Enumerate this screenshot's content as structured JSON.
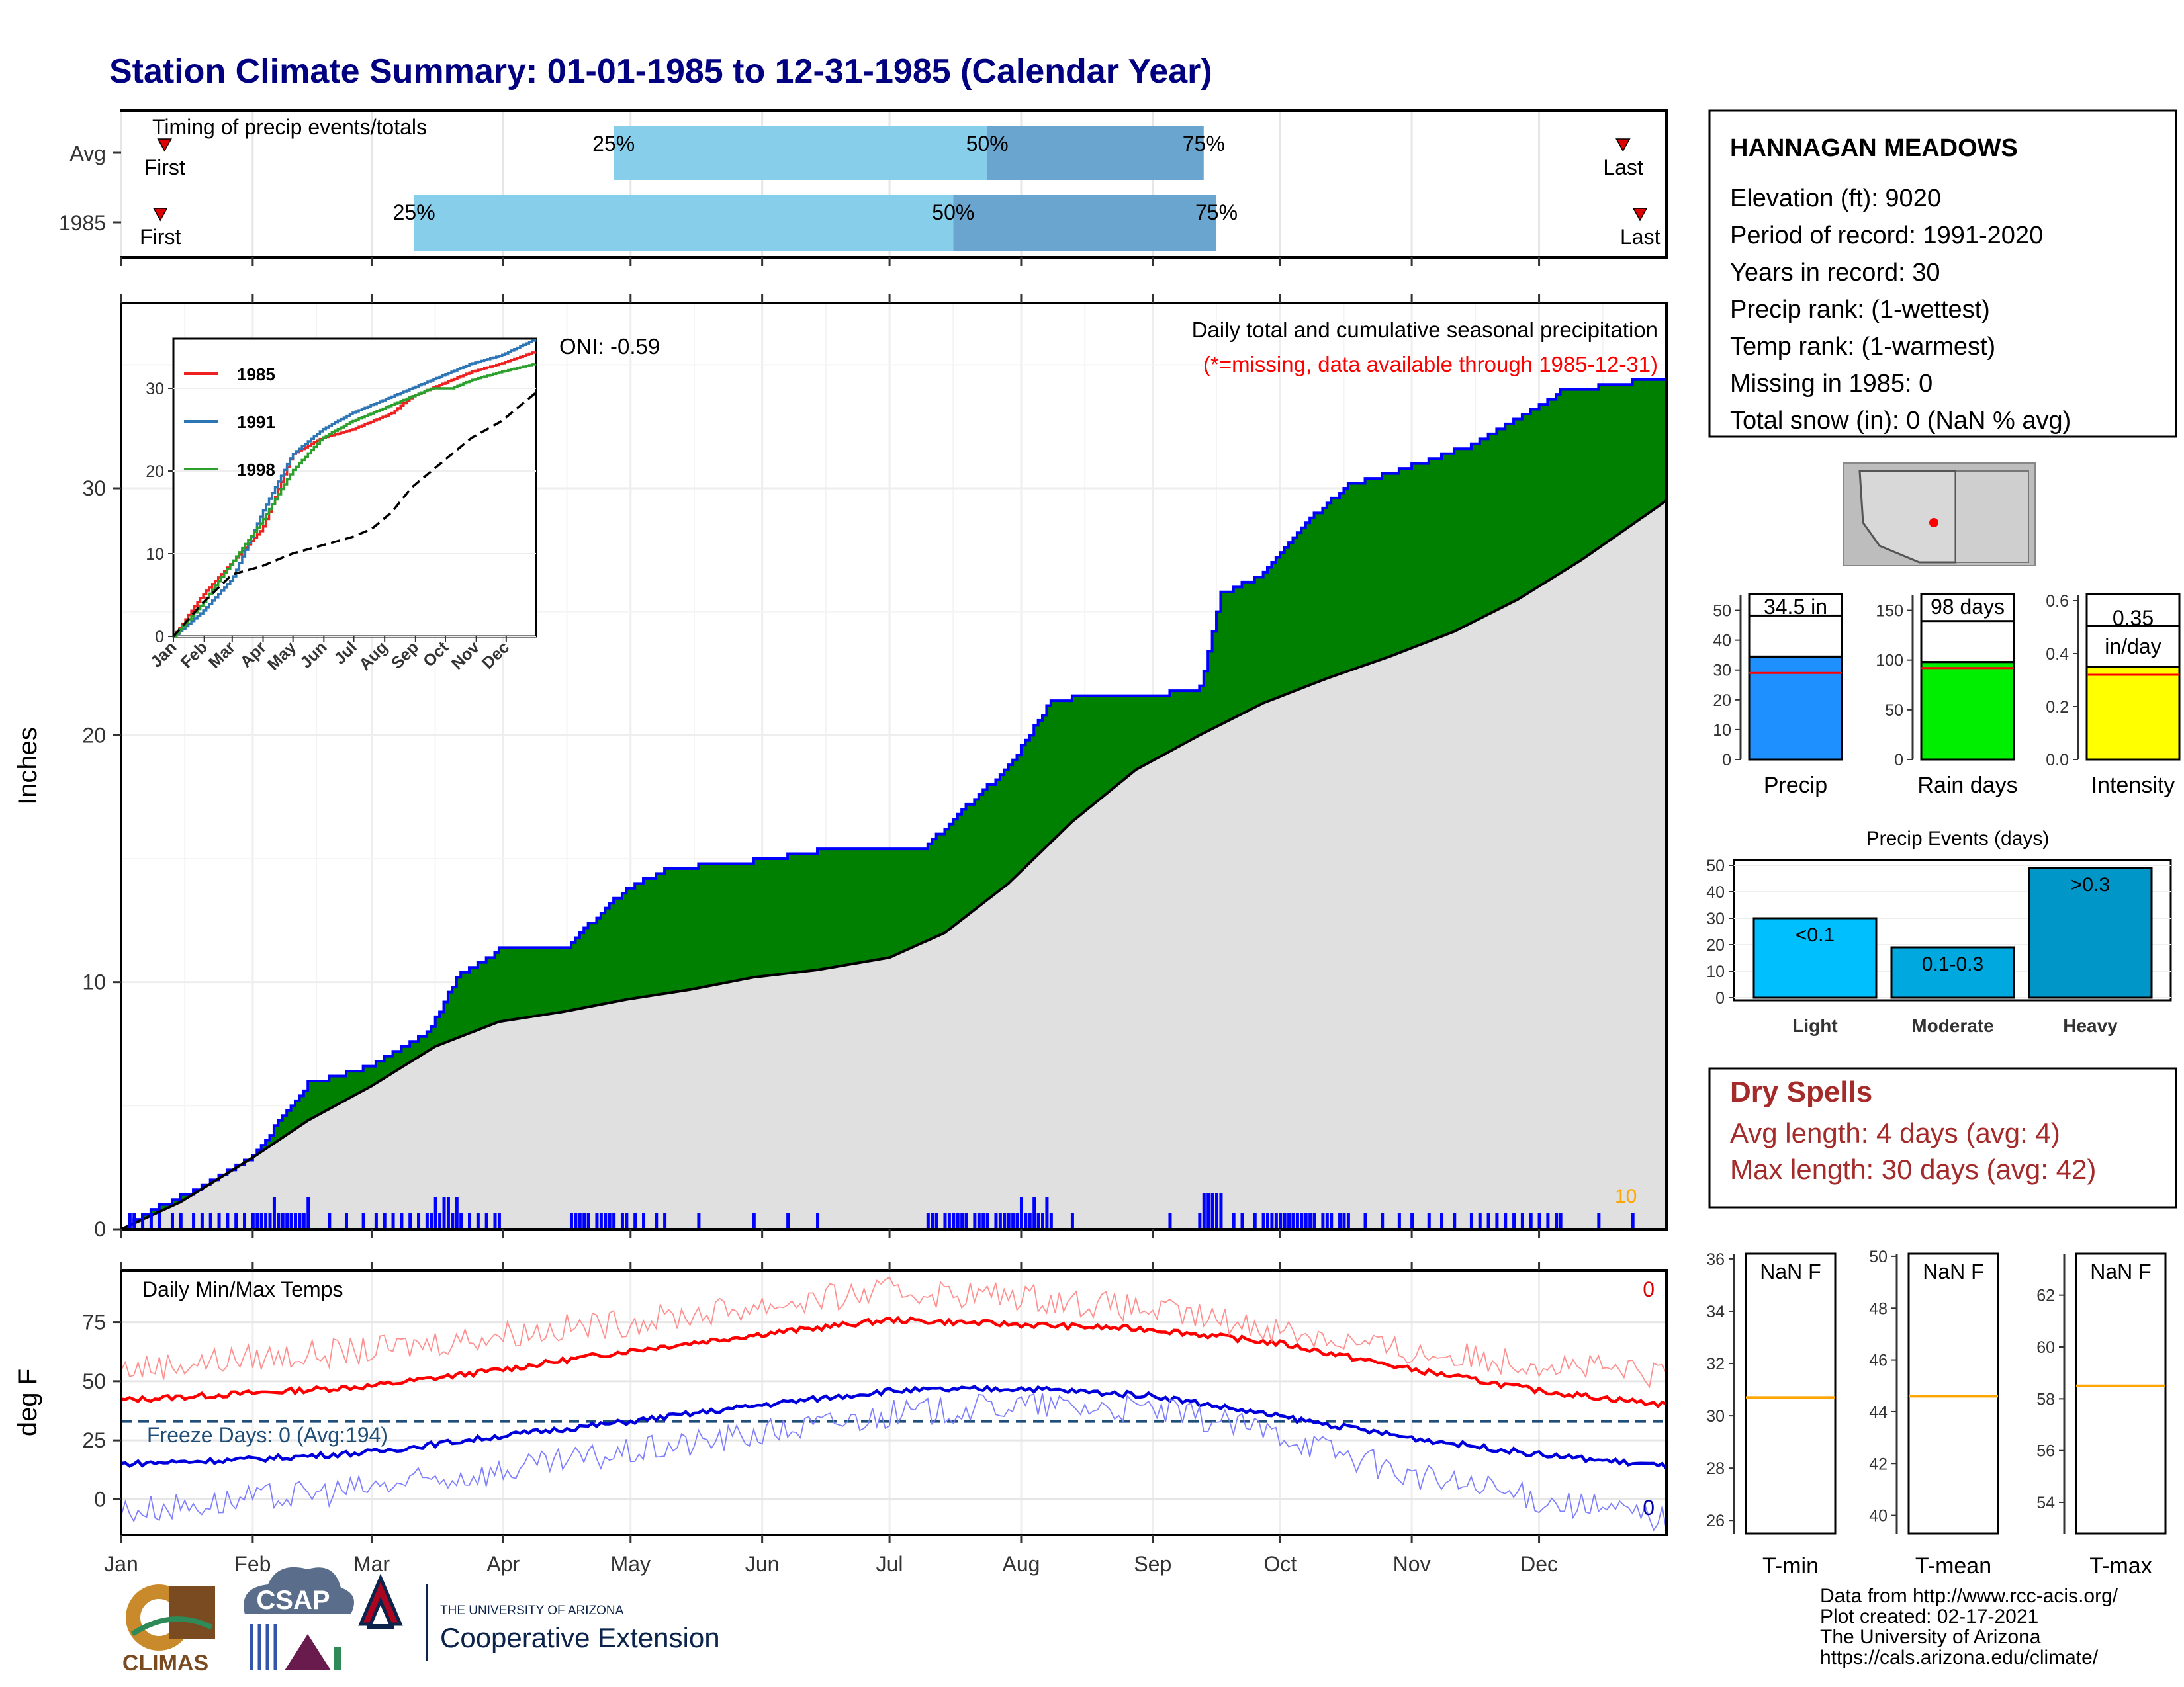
{
  "title": "Station Climate Summary: 01-01-1985 to 12-31-1985 (Calendar Year)",
  "months": [
    "Jan",
    "Feb",
    "Mar",
    "Apr",
    "May",
    "Jun",
    "Jul",
    "Aug",
    "Sep",
    "Oct",
    "Nov",
    "Dec"
  ],
  "timing": {
    "title": "Timing of precip events/totals",
    "rows": [
      {
        "label": "Avg",
        "first": "First",
        "last": "Last",
        "pct25": "25%",
        "pct50": "50%",
        "pct75": "75%",
        "day25": 117,
        "day50": 205,
        "day75": 256,
        "first_day": 5,
        "last_day": 361
      },
      {
        "label": "1985",
        "first": "First",
        "last": "Last",
        "pct25": "25%",
        "pct50": "50%",
        "pct75": "75%",
        "day25": 70,
        "day50": 197,
        "day75": 259,
        "first_day": 4,
        "last_day": 365
      }
    ]
  },
  "station": {
    "name": "HANNAGAN MEADOWS",
    "lines": [
      "Elevation (ft): 9020",
      "Period of record: 1991-2020",
      "Years in record: 30",
      "Precip rank:  (1-wettest)",
      "Temp rank:  (1-warmest)",
      "Missing in 1985: 0",
      "Total snow (in): 0 (NaN % avg)"
    ]
  },
  "main": {
    "ylabel": "Inches",
    "heading": "Daily total and cumulative seasonal precipitation",
    "note": "(*=missing, data available through 1985-12-31)",
    "oni": "ONI: -0.59",
    "corner_value": "10",
    "yticks": [
      "0",
      "10",
      "20",
      "30"
    ]
  },
  "chart_data": [
    {
      "type": "area",
      "name": "cumulative-precip-main",
      "ylabel": "Inches",
      "ylim": [
        0,
        37.5
      ],
      "x_unit": "day of year",
      "series": [
        {
          "name": "1985 cumulative",
          "x": [
            1,
            10,
            20,
            32,
            45,
            60,
            73,
            80,
            90,
            105,
            120,
            130,
            150,
            165,
            175,
            190,
            200,
            210,
            220,
            225,
            240,
            255,
            260,
            270,
            280,
            290,
            300,
            320,
            340,
            365
          ],
          "values": [
            0,
            0.9,
            1.7,
            3.0,
            5.9,
            6.6,
            7.9,
            10.2,
            11.3,
            11.3,
            13.8,
            14.6,
            14.9,
            15.3,
            15.3,
            15.4,
            17.1,
            18.7,
            21.4,
            21.5,
            21.5,
            21.9,
            25.7,
            26.5,
            28.6,
            30.1,
            30.6,
            31.8,
            33.9,
            34.5
          ]
        },
        {
          "name": "Average cumulative",
          "x": [
            1,
            15,
            32,
            45,
            60,
            75,
            90,
            105,
            120,
            135,
            150,
            165,
            182,
            195,
            210,
            225,
            240,
            255,
            270,
            285,
            300,
            315,
            330,
            345,
            365
          ],
          "values": [
            0,
            1.1,
            2.9,
            4.4,
            5.8,
            7.4,
            8.4,
            8.8,
            9.3,
            9.7,
            10.2,
            10.5,
            11.0,
            12.0,
            14.0,
            16.5,
            18.6,
            20.0,
            21.3,
            22.3,
            23.2,
            24.2,
            25.5,
            27.1,
            29.5
          ]
        }
      ]
    },
    {
      "type": "line",
      "name": "cumulative-precip-inset",
      "legend": [
        "1985",
        "1991",
        "1998"
      ],
      "ylim": [
        0,
        36
      ],
      "yticks": [
        "0",
        "10",
        "20",
        "30"
      ],
      "series": [
        {
          "name": "1985",
          "color": "#ee2020",
          "x": [
            1,
            30,
            60,
            90,
            120,
            150,
            180,
            200,
            220,
            240,
            260,
            280,
            300,
            330,
            365
          ],
          "values": [
            0,
            5,
            9,
            13,
            22,
            24,
            25,
            26,
            27,
            29,
            30,
            31,
            32,
            33,
            34.5
          ]
        },
        {
          "name": "1991",
          "color": "#2e75b6",
          "x": [
            1,
            30,
            60,
            90,
            120,
            150,
            180,
            200,
            220,
            240,
            260,
            280,
            300,
            330,
            365
          ],
          "values": [
            0,
            3,
            7,
            15,
            22,
            25,
            27,
            28,
            29,
            30,
            31,
            32,
            33,
            34,
            36
          ]
        },
        {
          "name": "1998",
          "color": "#2ca02c",
          "x": [
            1,
            30,
            60,
            90,
            120,
            150,
            180,
            200,
            220,
            240,
            260,
            280,
            300,
            330,
            365
          ],
          "values": [
            0,
            4,
            9,
            14,
            20,
            24,
            26,
            27,
            28,
            29,
            30,
            30,
            31,
            32,
            33
          ]
        },
        {
          "name": "avg",
          "color": "#000000",
          "x": [
            1,
            30,
            60,
            90,
            120,
            150,
            180,
            200,
            220,
            240,
            260,
            280,
            300,
            330,
            365
          ],
          "values": [
            0,
            4,
            7.5,
            8.5,
            10,
            11,
            12,
            13,
            15,
            18,
            20,
            22,
            24,
            26,
            29.5
          ]
        }
      ]
    },
    {
      "type": "bar",
      "name": "rank-bars",
      "panels": [
        {
          "label": "Precip",
          "value_label": "34.5 in",
          "value": 34.5,
          "avg": 29,
          "ylim": [
            0,
            55
          ],
          "yticks": [
            "0",
            "10",
            "20",
            "30",
            "40",
            "50"
          ],
          "color": "#1e90ff"
        },
        {
          "label": "Rain days",
          "value_label": "98 days",
          "value": 98,
          "avg": 92,
          "ylim": [
            0,
            165
          ],
          "yticks": [
            "0",
            "50",
            "100",
            "150"
          ],
          "color": "#00ee00"
        },
        {
          "label": "Intensity",
          "value_label": "0.35 in/day",
          "value": 0.35,
          "avg": 0.32,
          "ylim": [
            0,
            0.62
          ],
          "yticks": [
            "0.0",
            "0.2",
            "0.4",
            "0.6"
          ],
          "color": "#ffff00"
        }
      ]
    },
    {
      "type": "bar",
      "name": "precip-events",
      "title": "Precip Events (days)",
      "categories": [
        "Light",
        "Moderate",
        "Heavy"
      ],
      "bar_labels": [
        "<0.1",
        "0.1-0.3",
        ">0.3"
      ],
      "values": [
        30,
        19,
        49
      ],
      "ylim": [
        0,
        52
      ],
      "yticks": [
        "0",
        "10",
        "20",
        "30",
        "40",
        "50"
      ]
    },
    {
      "type": "line",
      "name": "daily-temps",
      "title": "Daily Min/Max Temps",
      "ylabel": "deg F",
      "ylim": [
        -15,
        97
      ],
      "yticks": [
        "0",
        "25",
        "50",
        "75"
      ],
      "freeze_line": 33,
      "freeze_label": "Freeze Days: 0 (Avg:194)",
      "corner_top": "0",
      "corner_bottom": "0",
      "series": [
        {
          "name": "avg max",
          "color": "#ff0000",
          "x": [
            1,
            32,
            60,
            91,
            121,
            152,
            182,
            213,
            244,
            274,
            305,
            335,
            365
          ],
          "values": [
            42,
            45,
            48,
            55,
            63,
            70,
            76,
            74,
            72,
            66,
            55,
            46,
            40
          ]
        },
        {
          "name": "avg min",
          "color": "#0000dd",
          "x": [
            1,
            32,
            60,
            91,
            121,
            152,
            182,
            213,
            244,
            274,
            305,
            335,
            365
          ],
          "values": [
            15,
            17,
            20,
            27,
            33,
            40,
            46,
            47,
            44,
            35,
            26,
            19,
            14
          ]
        },
        {
          "name": "1985 max",
          "color": "#ff9090",
          "x": [
            1,
            32,
            60,
            91,
            121,
            152,
            182,
            213,
            244,
            274,
            305,
            335,
            365
          ],
          "values": [
            55,
            60,
            63,
            70,
            75,
            82,
            88,
            86,
            80,
            72,
            62,
            58,
            52
          ]
        },
        {
          "name": "1985 min",
          "color": "#8080ff",
          "x": [
            1,
            32,
            60,
            91,
            121,
            152,
            182,
            213,
            244,
            274,
            305,
            335,
            365
          ],
          "values": [
            -5,
            0,
            5,
            12,
            20,
            28,
            36,
            40,
            38,
            28,
            10,
            0,
            -8
          ]
        }
      ]
    },
    {
      "type": "bar",
      "name": "temp-panels",
      "panels": [
        {
          "label": "T-min",
          "value_label": "NaN F",
          "avg": 30.7,
          "ylim": [
            25.5,
            36.2
          ],
          "yticks": [
            "26",
            "28",
            "30",
            "32",
            "34",
            "36"
          ]
        },
        {
          "label": "T-mean",
          "value_label": "NaN F",
          "avg": 44.6,
          "ylim": [
            39.3,
            50.1
          ],
          "yticks": [
            "40",
            "42",
            "44",
            "46",
            "48",
            "50"
          ]
        },
        {
          "label": "T-max",
          "value_label": "NaN F",
          "avg": 58.5,
          "ylim": [
            52.8,
            63.6
          ],
          "yticks": [
            "54",
            "56",
            "58",
            "60",
            "62"
          ]
        }
      ]
    }
  ],
  "dry_spells": {
    "title": "Dry Spells",
    "avg": "Avg length: 4 days (avg: 4)",
    "max": "Max length: 30 days (avg: 42)"
  },
  "footer": {
    "credits": [
      "Data from http://www.rcc-acis.org/",
      "Plot created: 02-17-2021",
      "The University of Arizona",
      "https://cals.arizona.edu/climate/"
    ],
    "logo_climas": "CLIMAS",
    "logo_csap": "CSAP",
    "ua_small": "THE UNIVERSITY OF ARIZONA",
    "ua_big": "Cooperative Extension"
  },
  "colors": {
    "title": "#000080",
    "cum": "#008000",
    "avg_fill": "#e0e0e0",
    "daily": "#0000ff",
    "dry": "#a52a2a"
  }
}
